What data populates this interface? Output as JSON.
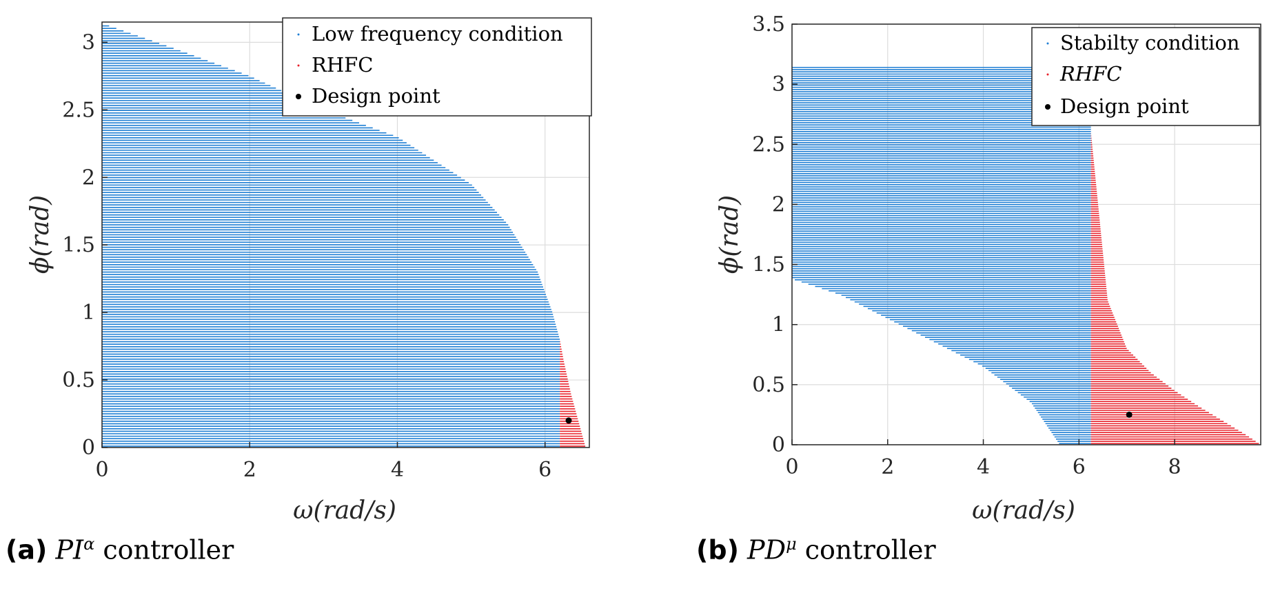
{
  "chart_data": [
    {
      "id": "a",
      "type": "scatter",
      "xlabel": "ω(rad/s)",
      "ylabel": "ϕ(rad)",
      "xlim": [
        0,
        6.6
      ],
      "ylim": [
        0,
        3.15
      ],
      "xticks": [
        0,
        2,
        4,
        6
      ],
      "yticks": [
        0,
        0.5,
        1,
        1.5,
        2,
        2.5,
        3
      ],
      "ytick_labels": [
        "0",
        "0.5",
        "1",
        "1.5",
        "2",
        "2.5",
        "3"
      ],
      "grid": true,
      "legend_position": "top-right",
      "series": [
        {
          "name": "Low frequency condition",
          "color": "#1f7fd4",
          "boundary_x": [
            0,
            1,
            2,
            3,
            4,
            5,
            5.5,
            5.9,
            6.1,
            6.2,
            6.25
          ],
          "boundary_y": [
            3.14,
            2.95,
            2.75,
            2.5,
            2.3,
            1.95,
            1.65,
            1.3,
            1.0,
            0.8,
            0.0
          ]
        },
        {
          "name": "RHFC",
          "color": "#e8202a",
          "boundary_x": [
            6.2,
            6.25,
            6.35,
            6.45,
            6.55
          ],
          "boundary_y": [
            0.8,
            0.65,
            0.4,
            0.2,
            0.0
          ]
        },
        {
          "name": "Design point",
          "color": "#000000",
          "x": [
            6.32
          ],
          "y": [
            0.2
          ]
        }
      ],
      "caption_label": "(a)",
      "caption_math": "PI",
      "caption_sup": "α",
      "caption_text": " controller"
    },
    {
      "id": "b",
      "type": "scatter",
      "xlabel": "ω(rad/s)",
      "ylabel": "ϕ(rad)",
      "xlim": [
        0,
        9.8
      ],
      "ylim": [
        0,
        3.5
      ],
      "xticks": [
        0,
        2,
        4,
        6,
        8
      ],
      "yticks": [
        0,
        0.5,
        1,
        1.5,
        2,
        2.5,
        3,
        3.5
      ],
      "ytick_labels": [
        "0",
        "0.5",
        "1",
        "1.5",
        "2",
        "2.5",
        "3",
        "3.5"
      ],
      "grid": true,
      "legend_position": "top-right",
      "series": [
        {
          "name": "Stabilty condition",
          "color": "#1f7fd4",
          "lower_x": [
            0,
            1,
            2,
            3,
            4,
            5,
            5.6
          ],
          "lower_y": [
            1.38,
            1.25,
            1.05,
            0.85,
            0.65,
            0.35,
            0.0
          ],
          "right_x": 6.25,
          "top_y": 3.14
        },
        {
          "name": "RHFC",
          "color": "#e8202a",
          "boundary_x": [
            6.25,
            6.4,
            6.6,
            7.0,
            7.5,
            8.0,
            8.5,
            9.0,
            9.5,
            9.8
          ],
          "boundary_y": [
            2.6,
            2.0,
            1.2,
            0.8,
            0.6,
            0.45,
            0.32,
            0.2,
            0.08,
            0.0
          ]
        },
        {
          "name": "Design point",
          "color": "#000000",
          "x": [
            7.05
          ],
          "y": [
            0.25
          ]
        }
      ],
      "caption_label": "(b)",
      "caption_math": "PD",
      "caption_sup": "μ",
      "caption_text": " controller"
    }
  ]
}
